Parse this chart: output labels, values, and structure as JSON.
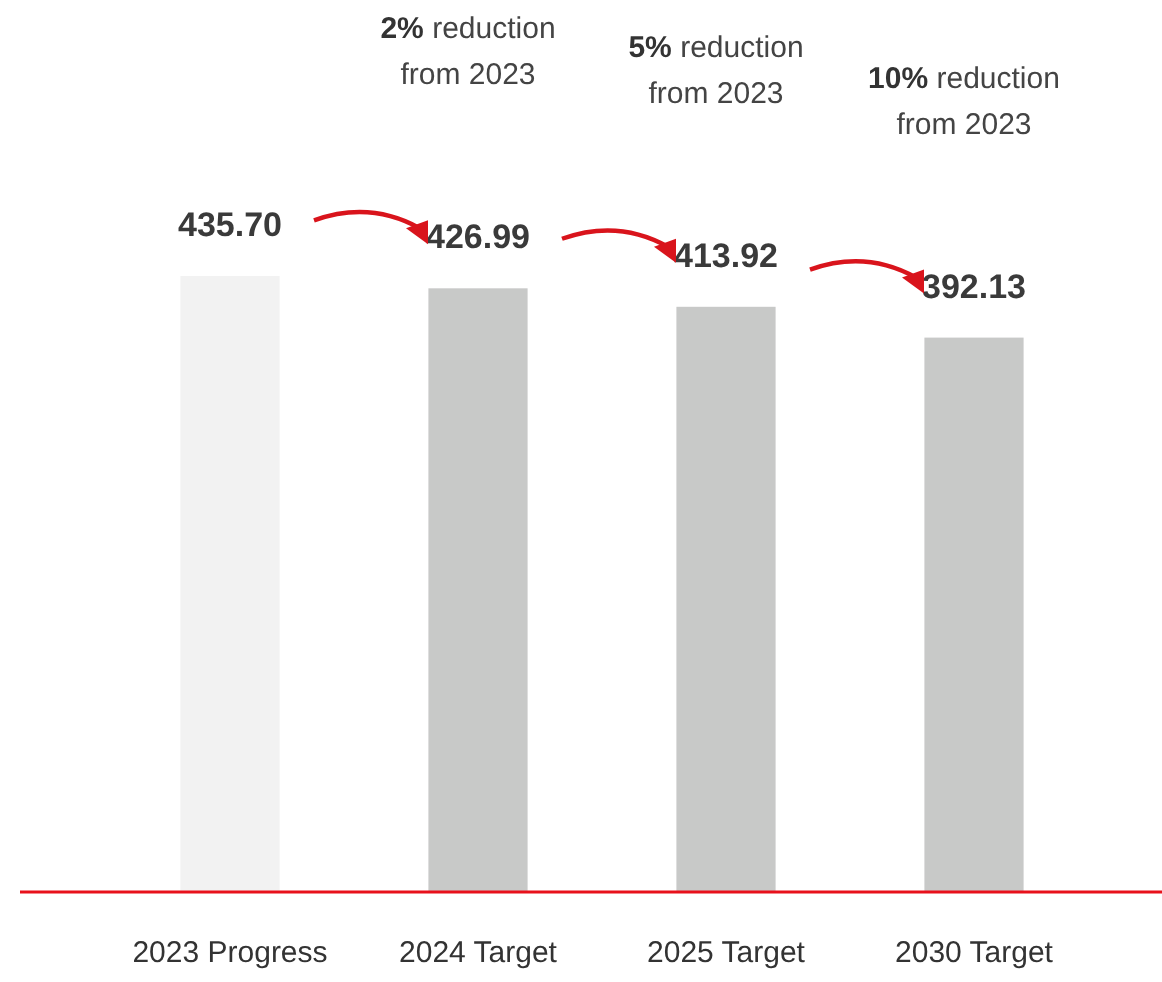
{
  "chart_data": {
    "type": "bar",
    "categories": [
      "2023 Progress",
      "2024 Target",
      "2025 Target",
      "2030 Target"
    ],
    "values": [
      435.7,
      426.99,
      413.92,
      392.13
    ],
    "colors": [
      "#f2f2f2",
      "#c8c9c8",
      "#c8c9c8",
      "#c8c9c8"
    ],
    "value_labels": [
      "435.70",
      "426.99",
      "413.92",
      "392.13"
    ],
    "tick_labels": "x",
    "annotations": [
      "2% reduction from 2023",
      "5% reduction from 2023",
      "10% reduction from 2023"
    ]
  }
}
